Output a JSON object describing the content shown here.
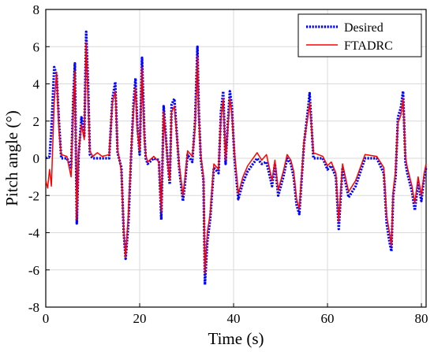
{
  "chart_data": {
    "type": "line",
    "xlabel": "Time (s)",
    "ylabel": "Pitch angle (°)",
    "xlim": [
      0,
      81
    ],
    "ylim": [
      -8,
      8
    ],
    "xticks": [
      0,
      20,
      40,
      60,
      80
    ],
    "yticks": [
      -8,
      -6,
      -4,
      -2,
      0,
      2,
      4,
      6,
      8
    ],
    "grid": true,
    "legend_position": "top-right",
    "series": [
      {
        "name": "Desired",
        "color": "#0000ff",
        "style": "dotted",
        "x": [
          0,
          0.8,
          1.2,
          1.8,
          2.3,
          2.8,
          3.3,
          4.5,
          5.4,
          5.9,
          6.2,
          6.6,
          7.0,
          7.6,
          8.2,
          8.6,
          9.0,
          9.4,
          10.0,
          12.0,
          13.5,
          14.2,
          14.8,
          15.3,
          16.1,
          16.6,
          17.0,
          17.6,
          18.2,
          18.7,
          19.1,
          19.5,
          20.0,
          20.5,
          21.0,
          21.3,
          21.7,
          23.0,
          24.1,
          24.6,
          25.1,
          26.0,
          26.4,
          26.8,
          27.4,
          28.4,
          29.2,
          29.6,
          30.2,
          31.2,
          31.8,
          32.3,
          32.6,
          33.0,
          33.6,
          33.9,
          34.4,
          35.0,
          35.8,
          36.8,
          37.3,
          37.8,
          38.3,
          38.8,
          39.2,
          39.6,
          40.2,
          41.0,
          42.0,
          43.0,
          45.0,
          46.0,
          47.0,
          48.2,
          48.8,
          49.5,
          50.6,
          51.4,
          52.2,
          52.8,
          53.4,
          54.0,
          55.0,
          55.8,
          56.2,
          57.0,
          59.0,
          60.0,
          60.8,
          61.8,
          62.4,
          63.2,
          64.5,
          66.0,
          68.0,
          70.5,
          72.0,
          72.6,
          73.2,
          73.6,
          74.0,
          74.5,
          75.0,
          75.6,
          76.1,
          76.6,
          77.0,
          78.0,
          78.6,
          79.3,
          80.0,
          80.6,
          81.0
        ],
        "values": [
          0,
          0.1,
          1.5,
          4.9,
          4.5,
          2.0,
          0,
          0,
          -0.5,
          3.5,
          5.1,
          -3.5,
          0.2,
          2.2,
          1.2,
          6.8,
          4.0,
          0.2,
          0,
          0,
          0,
          3.2,
          4.1,
          0.3,
          -0.5,
          -4.0,
          -5.4,
          -3.5,
          0.3,
          3.0,
          4.3,
          1.8,
          0.2,
          5.4,
          1.3,
          0,
          -0.3,
          0,
          -0.1,
          -3.3,
          2.8,
          -0.3,
          -1.4,
          2.9,
          3.2,
          -0.5,
          -2.3,
          -1.5,
          0.2,
          -0.2,
          2.0,
          6.0,
          2.5,
          0,
          -1.2,
          -6.8,
          -4.5,
          -3.3,
          -0.5,
          -0.8,
          2.5,
          3.6,
          -0.3,
          2.0,
          3.6,
          2.9,
          0,
          -2.2,
          -1.3,
          -0.7,
          0,
          -0.3,
          -0.2,
          -1.5,
          -0.3,
          -2.0,
          -1.0,
          0,
          -0.3,
          -1.0,
          -2.5,
          -3.0,
          0.8,
          2.5,
          3.5,
          0,
          0,
          -0.6,
          -0.4,
          -1.0,
          -3.8,
          -0.5,
          -2.1,
          -1.5,
          0,
          0,
          -0.8,
          -3.5,
          -4.5,
          -5.0,
          -2.0,
          -1.0,
          2.2,
          2.7,
          3.6,
          -0.2,
          -0.8,
          -1.8,
          -2.8,
          -1.3,
          -2.3,
          -1.0,
          -0.5
        ]
      },
      {
        "name": "FTADRC",
        "color": "#ff0000",
        "style": "solid",
        "x": [
          0,
          0.4,
          0.8,
          1.2,
          1.8,
          2.3,
          2.8,
          3.3,
          4.5,
          5.4,
          5.9,
          6.2,
          6.6,
          7.0,
          7.6,
          8.2,
          8.6,
          9.0,
          9.4,
          10.0,
          11.0,
          12.0,
          13.5,
          14.2,
          14.8,
          15.3,
          16.1,
          16.6,
          17.0,
          17.6,
          18.2,
          18.7,
          19.1,
          19.5,
          20.0,
          20.5,
          21.0,
          21.3,
          21.7,
          23.0,
          24.1,
          24.6,
          25.1,
          26.0,
          26.4,
          26.8,
          27.4,
          28.4,
          29.2,
          29.6,
          30.2,
          31.2,
          31.8,
          32.3,
          32.6,
          33.0,
          33.6,
          33.9,
          34.4,
          35.0,
          35.8,
          36.8,
          37.3,
          37.8,
          38.3,
          38.8,
          39.2,
          39.6,
          40.2,
          41.0,
          42.0,
          43.0,
          45.0,
          46.0,
          47.0,
          48.2,
          48.8,
          49.5,
          50.6,
          51.4,
          52.2,
          52.8,
          53.4,
          54.0,
          55.0,
          55.8,
          56.2,
          57.0,
          59.0,
          60.0,
          60.8,
          61.8,
          62.4,
          63.2,
          64.5,
          66.0,
          68.0,
          70.5,
          72.0,
          72.6,
          73.2,
          73.6,
          74.0,
          74.5,
          75.0,
          75.6,
          76.1,
          76.6,
          77.0,
          78.0,
          78.6,
          79.3,
          80.0,
          80.6,
          81.0
        ],
        "values": [
          -1.2,
          -1.6,
          -0.6,
          -1.5,
          3.0,
          4.6,
          1.5,
          0.2,
          0.1,
          -1.0,
          3.0,
          4.7,
          -3.3,
          0.3,
          1.8,
          1.0,
          6.2,
          3.2,
          0.4,
          0.1,
          0.3,
          0.1,
          0.2,
          3.0,
          3.6,
          0.5,
          -0.7,
          -3.8,
          -5.3,
          -3.0,
          0.4,
          2.6,
          3.8,
          1.5,
          0.4,
          4.9,
          1.0,
          0.2,
          -0.2,
          0.1,
          -0.2,
          -2.9,
          2.5,
          -0.3,
          -1.2,
          2.5,
          2.8,
          -0.3,
          -2.0,
          -1.2,
          0.4,
          0.1,
          1.6,
          5.5,
          2.2,
          0.2,
          -1.0,
          -6.2,
          -4.0,
          -3.0,
          -0.3,
          -0.6,
          2.1,
          3.2,
          -0.1,
          1.7,
          3.2,
          2.5,
          0.3,
          -1.9,
          -1.0,
          -0.4,
          0.3,
          -0.1,
          0.2,
          -1.2,
          -0.1,
          -1.7,
          -0.7,
          0.2,
          -0.1,
          -0.7,
          -2.2,
          -2.7,
          0.9,
          2.2,
          3.0,
          0.3,
          0.1,
          -0.4,
          -0.2,
          -0.8,
          -3.4,
          -0.3,
          -1.8,
          -1.2,
          0.2,
          0.1,
          -0.5,
          -3.1,
          -4.0,
          -4.7,
          -1.7,
          -0.7,
          1.9,
          2.3,
          3.2,
          0.1,
          -0.5,
          -1.5,
          -2.4,
          -1.0,
          -2.0,
          -0.8,
          -0.3
        ]
      }
    ]
  }
}
